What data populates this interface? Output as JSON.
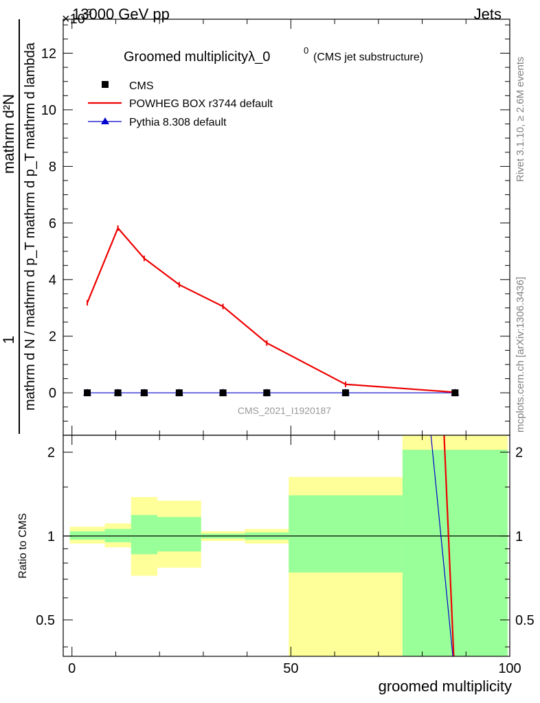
{
  "header": {
    "energy": "13000 GeV pp",
    "process": "Jets",
    "exponent_prefix": "×10",
    "exponent": "-3"
  },
  "side_text": {
    "rivet": "Rivet 3.1.10, ≥ 2.6M events",
    "mcplots": "mcplots.cern.ch [arXiv:1306.3436]"
  },
  "plot_title": {
    "main": "Groomed multiplicityλ_0",
    "sup": "0",
    "sub": "(CMS jet substructure)"
  },
  "analysis_id": "CMS_2021_I1920187",
  "ylabel_main": {
    "numerator": "mathrm d²N",
    "denominator": "mathrm d N / mathrm d p_T mathrm d p_T mathrm d lambda",
    "prefix": "1"
  },
  "ylabel_ratio": "Ratio to CMS",
  "xlabel": "groomed multiplicity",
  "legend": [
    {
      "name": "CMS",
      "marker": "square",
      "color": "#000000"
    },
    {
      "name": "POWHEG BOX r3744 default",
      "marker": "line",
      "color": "#ee0000"
    },
    {
      "name": "Pythia 8.308 default",
      "marker": "triangle",
      "color": "#0000cc"
    }
  ],
  "chart_data": [
    {
      "type": "line",
      "panel": "main",
      "xlim": [
        -2,
        100
      ],
      "ylim": [
        -1.5,
        13.2
      ],
      "y_scale_note": "×10^-3",
      "y_ticks": [
        0,
        2,
        4,
        6,
        8,
        10,
        12
      ],
      "x": [
        3.5,
        10.5,
        16.5,
        24.5,
        34.5,
        44.5,
        62.5,
        87.5
      ],
      "series": [
        {
          "name": "CMS",
          "color": "#000000",
          "values": [
            0,
            0,
            0,
            0,
            0,
            0,
            0,
            0
          ]
        },
        {
          "name": "POWHEG BOX r3744 default",
          "color": "#ee0000",
          "values": [
            3.18,
            5.82,
            4.75,
            3.82,
            3.05,
            1.76,
            0.3,
            0.02
          ]
        },
        {
          "name": "Pythia 8.308 default",
          "color": "#0000cc",
          "values": [
            0,
            0,
            0,
            0,
            0,
            0,
            0,
            0
          ]
        }
      ]
    },
    {
      "type": "area",
      "panel": "ratio",
      "xlim": [
        -2,
        100
      ],
      "ylim": [
        0.37,
        2.3
      ],
      "y_ticks": [
        0.5,
        1,
        2
      ],
      "x_ticks": [
        0,
        50,
        100
      ],
      "reference_line": 1,
      "bands": [
        {
          "x0": -0.5,
          "x1": 7.5,
          "inner": [
            0.97,
            1.04
          ],
          "outer": [
            0.94,
            1.08
          ]
        },
        {
          "x0": 7.5,
          "x1": 13.5,
          "inner": [
            0.95,
            1.06
          ],
          "outer": [
            0.91,
            1.11
          ]
        },
        {
          "x0": 13.5,
          "x1": 19.5,
          "inner": [
            0.86,
            1.19
          ],
          "outer": [
            0.72,
            1.38
          ]
        },
        {
          "x0": 19.5,
          "x1": 29.5,
          "inner": [
            0.88,
            1.17
          ],
          "outer": [
            0.77,
            1.34
          ]
        },
        {
          "x0": 29.5,
          "x1": 39.5,
          "inner": [
            0.98,
            1.02
          ],
          "outer": [
            0.96,
            1.04
          ]
        },
        {
          "x0": 39.5,
          "x1": 49.5,
          "inner": [
            0.97,
            1.03
          ],
          "outer": [
            0.94,
            1.06
          ]
        },
        {
          "x0": 49.5,
          "x1": 75.5,
          "inner": [
            0.74,
            1.4
          ],
          "outer": [
            0.35,
            1.63
          ]
        },
        {
          "x0": 75.5,
          "x1": 99.5,
          "inner": [
            0.35,
            2.04
          ],
          "outer": [
            0.35,
            2.5
          ]
        }
      ],
      "series": [
        {
          "name": "POWHEG BOX r3744 default",
          "color": "#ee0000",
          "x": [
            85.0,
            87.2
          ],
          "values": [
            2.5,
            0.35
          ]
        },
        {
          "name": "Pythia 8.308 default",
          "color": "#0000cc",
          "x": [
            82.0,
            87.0
          ],
          "values": [
            2.5,
            0.35
          ]
        }
      ]
    }
  ]
}
